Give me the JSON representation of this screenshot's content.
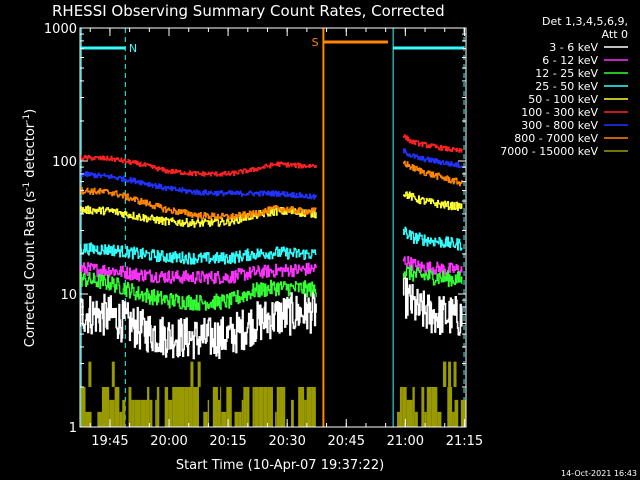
{
  "chart_data": {
    "type": "line",
    "title": "RHESSI Observing Summary Count Rates, Corrected",
    "xlabel": "Start Time (10-Apr-07 19:37:22)",
    "ylabel": "Corrected Count Rate (s",
    "ylabel_sup1": "-1",
    "ylabel_mid": " detector",
    "ylabel_sup2": "-1",
    "ylabel_end": ")",
    "yscale": "log",
    "ylim": [
      1,
      1000
    ],
    "xlim_minutes": [
      0,
      98
    ],
    "x_ticks": [
      {
        "label": "19:45",
        "minute": 7.6
      },
      {
        "label": "20:00",
        "minute": 22.6
      },
      {
        "label": "20:15",
        "minute": 37.6
      },
      {
        "label": "20:30",
        "minute": 52.6
      },
      {
        "label": "20:45",
        "minute": 67.6
      },
      {
        "label": "21:00",
        "minute": 82.6
      },
      {
        "label": "21:15",
        "minute": 97.6
      }
    ],
    "y_ticks": [
      {
        "label": "1",
        "value": 1
      },
      {
        "label": "10",
        "value": 10
      },
      {
        "label": "100",
        "value": 100
      },
      {
        "label": "1000",
        "value": 1000
      }
    ],
    "legend_header_1": "Det 1,3,4,5,6,9,",
    "legend_header_2": "Att 0",
    "series": [
      {
        "name": "3 - 6 keV",
        "color": "#ffffff",
        "segment1": [
          [
            0,
            7.2
          ],
          [
            8,
            6.8
          ],
          [
            15,
            5.4
          ],
          [
            22,
            4.8
          ],
          [
            30,
            4.6
          ],
          [
            38,
            4.8
          ],
          [
            44,
            6.0
          ],
          [
            50,
            6.8
          ],
          [
            56,
            7.2
          ],
          [
            60,
            7.4
          ]
        ],
        "segment2": [
          [
            82,
            10
          ],
          [
            84,
            8.5
          ],
          [
            86,
            7.5
          ],
          [
            90,
            7.0
          ],
          [
            94,
            6.8
          ],
          [
            97,
            6.7
          ]
        ],
        "noise": 0.16
      },
      {
        "name": "6 - 12 keV",
        "color": "#ff33ff",
        "segment1": [
          [
            0,
            15.5
          ],
          [
            8,
            15
          ],
          [
            15,
            14
          ],
          [
            22,
            13.5
          ],
          [
            30,
            13.3
          ],
          [
            38,
            13.4
          ],
          [
            44,
            14.5
          ],
          [
            50,
            15
          ],
          [
            56,
            15.2
          ],
          [
            60,
            15.5
          ]
        ],
        "segment2": [
          [
            82,
            18
          ],
          [
            84,
            17
          ],
          [
            86,
            16
          ],
          [
            90,
            15.6
          ],
          [
            94,
            15.3
          ],
          [
            97,
            15.2
          ]
        ],
        "noise": 0.05
      },
      {
        "name": "12 - 25 keV",
        "color": "#33ff33",
        "segment1": [
          [
            0,
            13
          ],
          [
            8,
            12
          ],
          [
            15,
            10
          ],
          [
            22,
            9.0
          ],
          [
            30,
            8.6
          ],
          [
            38,
            8.8
          ],
          [
            44,
            10.5
          ],
          [
            50,
            11.2
          ],
          [
            56,
            11.0
          ],
          [
            60,
            10.8
          ]
        ],
        "segment2": [
          [
            82,
            15
          ],
          [
            84,
            14.2
          ],
          [
            86,
            13.8
          ],
          [
            90,
            13.4
          ],
          [
            94,
            13.0
          ],
          [
            97,
            12.8
          ]
        ],
        "noise": 0.06
      },
      {
        "name": "25 - 50 keV",
        "color": "#33ffff",
        "segment1": [
          [
            0,
            22
          ],
          [
            8,
            21.5
          ],
          [
            15,
            20
          ],
          [
            22,
            19
          ],
          [
            30,
            18.5
          ],
          [
            38,
            18.6
          ],
          [
            44,
            20
          ],
          [
            50,
            20.5
          ],
          [
            56,
            20
          ],
          [
            60,
            20
          ]
        ],
        "segment2": [
          [
            82,
            30
          ],
          [
            84,
            27
          ],
          [
            86,
            26
          ],
          [
            90,
            25
          ],
          [
            94,
            24
          ],
          [
            97,
            23.5
          ]
        ],
        "noise": 0.045
      },
      {
        "name": "50 - 100 keV",
        "color": "#ffff33",
        "segment1": [
          [
            0,
            43
          ],
          [
            8,
            42
          ],
          [
            15,
            38
          ],
          [
            22,
            35
          ],
          [
            30,
            34
          ],
          [
            38,
            35
          ],
          [
            44,
            39
          ],
          [
            50,
            42
          ],
          [
            56,
            41
          ],
          [
            60,
            40
          ]
        ],
        "segment2": [
          [
            82,
            58
          ],
          [
            84,
            54
          ],
          [
            86,
            51
          ],
          [
            90,
            48
          ],
          [
            94,
            46
          ],
          [
            97,
            45.5
          ]
        ],
        "noise": 0.03
      },
      {
        "name": "100 - 300 keV",
        "color": "#ff2222",
        "segment1": [
          [
            0,
            106
          ],
          [
            8,
            104
          ],
          [
            15,
            95
          ],
          [
            22,
            84
          ],
          [
            30,
            80
          ],
          [
            38,
            80
          ],
          [
            44,
            86
          ],
          [
            50,
            95
          ],
          [
            56,
            92
          ],
          [
            60,
            92
          ]
        ],
        "segment2": [
          [
            82,
            155
          ],
          [
            84,
            140
          ],
          [
            86,
            135
          ],
          [
            90,
            128
          ],
          [
            94,
            122
          ],
          [
            97,
            118
          ]
        ],
        "noise": 0.018
      },
      {
        "name": "300 - 800 keV",
        "color": "#2233ff",
        "segment1": [
          [
            0,
            80
          ],
          [
            8,
            76
          ],
          [
            15,
            70
          ],
          [
            22,
            62
          ],
          [
            30,
            58
          ],
          [
            38,
            57
          ],
          [
            44,
            57
          ],
          [
            50,
            57
          ],
          [
            56,
            55
          ],
          [
            60,
            53
          ]
        ],
        "segment2": [
          [
            82,
            120
          ],
          [
            84,
            110
          ],
          [
            86,
            105
          ],
          [
            90,
            100
          ],
          [
            94,
            95
          ],
          [
            97,
            92
          ]
        ],
        "noise": 0.02
      },
      {
        "name": "800 - 7000 keV",
        "color": "#ff8800",
        "segment1": [
          [
            0,
            60
          ],
          [
            8,
            58
          ],
          [
            15,
            50
          ],
          [
            22,
            43
          ],
          [
            30,
            39
          ],
          [
            38,
            38
          ],
          [
            44,
            40
          ],
          [
            50,
            44
          ],
          [
            56,
            42
          ],
          [
            60,
            42
          ]
        ],
        "segment2": [
          [
            82,
            98
          ],
          [
            84,
            90
          ],
          [
            86,
            85
          ],
          [
            90,
            78
          ],
          [
            94,
            72
          ],
          [
            97,
            68
          ]
        ],
        "noise": 0.025
      },
      {
        "name": "7000 - 15000 keV",
        "color": "#999900",
        "segment1": [],
        "segment2": [],
        "noise": 0
      }
    ],
    "flags": [
      {
        "label": "N",
        "color": "#33ffff"
      },
      {
        "label": "S",
        "color": "#ff8800"
      }
    ],
    "timestamp": "14-Oct-2021 16:43"
  }
}
